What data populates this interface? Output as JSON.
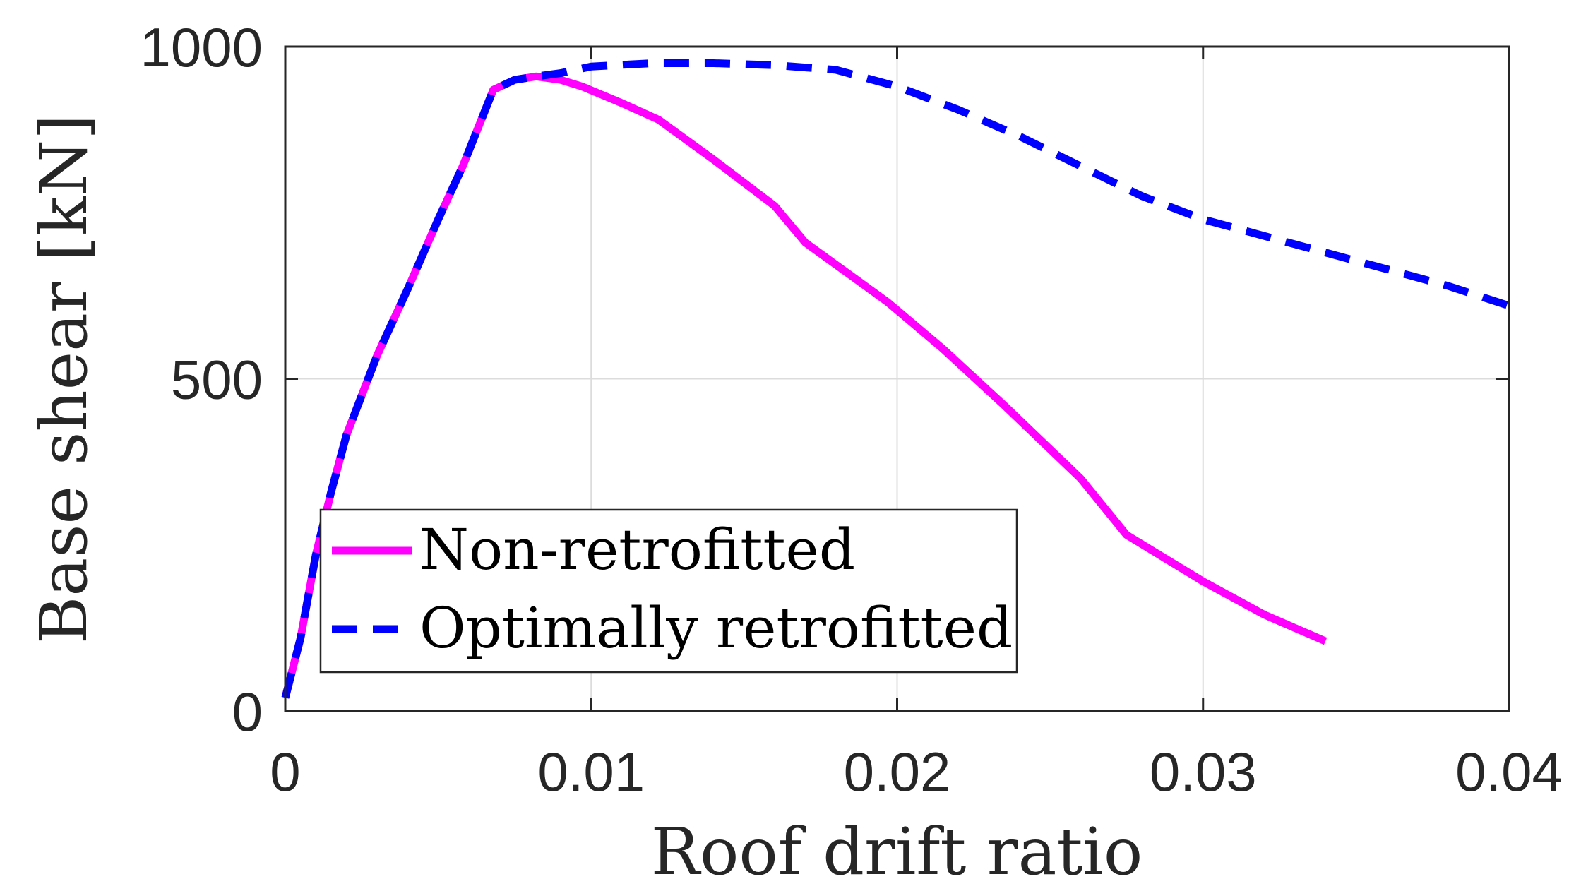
{
  "chart_data": {
    "type": "line",
    "title": "",
    "xlabel": "Roof drift ratio",
    "ylabel": "Base shear [kN]",
    "xlim": [
      0,
      0.04
    ],
    "ylim": [
      0,
      1000
    ],
    "xticks": [
      0,
      0.01,
      0.02,
      0.03,
      0.04
    ],
    "xtick_labels": [
      "0",
      "0.01",
      "0.02",
      "0.03",
      "0.04"
    ],
    "yticks": [
      0,
      500,
      1000
    ],
    "ytick_labels": [
      "0",
      "500",
      "1000"
    ],
    "grid": true,
    "legend_position": "lower-left",
    "series": [
      {
        "name": "Non-retrofitted",
        "color": "#ff00ff",
        "style": "solid",
        "x": [
          0,
          0.0005,
          0.001,
          0.0015,
          0.002,
          0.0025,
          0.003,
          0.004,
          0.005,
          0.0058,
          0.0068,
          0.0075,
          0.0082,
          0.009,
          0.0097,
          0.011,
          0.0122,
          0.014,
          0.016,
          0.017,
          0.0185,
          0.0197,
          0.0215,
          0.0235,
          0.026,
          0.0275,
          0.03,
          0.032,
          0.034
        ],
        "y": [
          20,
          110,
          235,
          330,
          415,
          475,
          535,
          635,
          740,
          820,
          935,
          950,
          955,
          950,
          940,
          915,
          890,
          830,
          760,
          705,
          655,
          615,
          545,
          460,
          350,
          265,
          195,
          145,
          105
        ]
      },
      {
        "name": "Optimally retrofitted",
        "color": "#0000ff",
        "style": "dashed",
        "x": [
          0,
          0.0005,
          0.001,
          0.0015,
          0.002,
          0.0025,
          0.003,
          0.004,
          0.005,
          0.0058,
          0.0068,
          0.0075,
          0.0082,
          0.009,
          0.01,
          0.012,
          0.014,
          0.016,
          0.018,
          0.02,
          0.022,
          0.024,
          0.026,
          0.028,
          0.03,
          0.032,
          0.034,
          0.036,
          0.038,
          0.04
        ],
        "y": [
          20,
          110,
          235,
          330,
          415,
          475,
          535,
          635,
          740,
          820,
          935,
          950,
          955,
          960,
          970,
          975,
          975,
          972,
          965,
          940,
          905,
          865,
          820,
          775,
          740,
          715,
          690,
          665,
          640,
          610
        ]
      }
    ]
  }
}
